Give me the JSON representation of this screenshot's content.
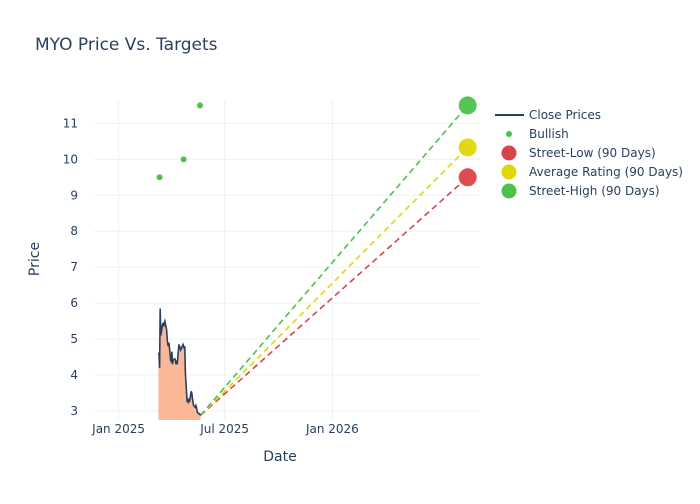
{
  "chart_data": {
    "type": "line",
    "title": "MYO Price Vs. Targets",
    "xlabel": "Date",
    "ylabel": "Price",
    "xlim": [
      "2024-11-20",
      "2026-09-10"
    ],
    "ylim": [
      2.75,
      11.65
    ],
    "x_ticks": [
      {
        "date": "2025-01-01",
        "label": "Jan 2025"
      },
      {
        "date": "2025-07-01",
        "label": "Jul 2025"
      },
      {
        "date": "2026-01-01",
        "label": "Jan 2026"
      }
    ],
    "y_ticks": [
      3,
      4,
      5,
      6,
      7,
      8,
      9,
      10,
      11
    ],
    "grid": true,
    "legend_position": "right",
    "colors": {
      "close": "#2a3f5f",
      "fill": "#fbb896",
      "bullish": "#4cc24c",
      "low": "#d9434b",
      "avg": "#e0d60a",
      "high": "#4cc24c",
      "grid": "#eef0f4",
      "text": "#2a3f5f"
    },
    "series": [
      {
        "name": "Close Prices",
        "kind": "line",
        "points": [
          [
            "2025-03-10",
            4.57
          ],
          [
            "2025-03-11",
            4.6
          ],
          [
            "2025-03-12",
            4.2
          ],
          [
            "2025-03-13",
            5.85
          ],
          [
            "2025-03-14",
            5.1
          ],
          [
            "2025-03-17",
            5.4
          ],
          [
            "2025-03-18",
            5.45
          ],
          [
            "2025-03-19",
            5.35
          ],
          [
            "2025-03-20",
            5.45
          ],
          [
            "2025-03-21",
            5.5
          ],
          [
            "2025-03-24",
            5.25
          ],
          [
            "2025-03-25",
            5.0
          ],
          [
            "2025-03-26",
            4.85
          ],
          [
            "2025-03-27",
            4.8
          ],
          [
            "2025-03-28",
            4.9
          ],
          [
            "2025-03-31",
            4.4
          ],
          [
            "2025-04-01",
            4.38
          ],
          [
            "2025-04-02",
            4.65
          ],
          [
            "2025-04-03",
            4.3
          ],
          [
            "2025-04-04",
            4.42
          ],
          [
            "2025-04-07",
            4.45
          ],
          [
            "2025-04-08",
            4.4
          ],
          [
            "2025-04-09",
            4.3
          ],
          [
            "2025-04-10",
            4.35
          ],
          [
            "2025-04-11",
            4.3
          ],
          [
            "2025-04-14",
            4.85
          ],
          [
            "2025-04-15",
            4.8
          ],
          [
            "2025-04-16",
            4.75
          ],
          [
            "2025-04-17",
            4.7
          ],
          [
            "2025-04-21",
            4.85
          ],
          [
            "2025-04-22",
            4.8
          ],
          [
            "2025-04-23",
            4.75
          ],
          [
            "2025-04-24",
            4.8
          ],
          [
            "2025-04-25",
            4.05
          ],
          [
            "2025-04-28",
            3.25
          ],
          [
            "2025-04-29",
            3.3
          ],
          [
            "2025-04-30",
            3.25
          ],
          [
            "2025-05-01",
            3.3
          ],
          [
            "2025-05-02",
            3.25
          ],
          [
            "2025-05-05",
            3.55
          ],
          [
            "2025-05-06",
            3.5
          ],
          [
            "2025-05-07",
            3.35
          ],
          [
            "2025-05-08",
            3.25
          ],
          [
            "2025-05-09",
            3.15
          ],
          [
            "2025-05-12",
            3.1
          ],
          [
            "2025-05-13",
            3.15
          ],
          [
            "2025-05-14",
            3.1
          ],
          [
            "2025-05-15",
            3.0
          ],
          [
            "2025-05-16",
            2.95
          ],
          [
            "2025-05-19",
            2.92
          ],
          [
            "2025-05-20",
            2.9
          ],
          [
            "2025-05-21",
            2.88
          ]
        ]
      },
      {
        "name": "Bullish",
        "kind": "markers",
        "points": [
          [
            "2025-03-12",
            9.5
          ],
          [
            "2025-04-22",
            10.0
          ],
          [
            "2025-05-20",
            11.5
          ]
        ]
      },
      {
        "name": "Street-Low (90 Days)",
        "kind": "target",
        "start": [
          "2025-05-21",
          2.88
        ],
        "end": [
          "2026-08-20",
          9.5
        ]
      },
      {
        "name": "Average Rating (90 Days)",
        "kind": "target",
        "start": [
          "2025-05-21",
          2.88
        ],
        "end": [
          "2026-08-20",
          10.33
        ]
      },
      {
        "name": "Street-High (90 Days)",
        "kind": "target",
        "start": [
          "2025-05-21",
          2.88
        ],
        "end": [
          "2026-08-20",
          11.5
        ]
      }
    ],
    "legend": [
      {
        "label": "Close Prices",
        "symbol": "line",
        "color_key": "close"
      },
      {
        "label": "Bullish",
        "symbol": "dot-small",
        "color_key": "bullish"
      },
      {
        "label": "Street-Low (90 Days)",
        "symbol": "dot-large",
        "color_key": "low"
      },
      {
        "label": "Average Rating (90 Days)",
        "symbol": "dot-large",
        "color_key": "avg"
      },
      {
        "label": "Street-High (90 Days)",
        "symbol": "dot-large",
        "color_key": "high"
      }
    ]
  }
}
